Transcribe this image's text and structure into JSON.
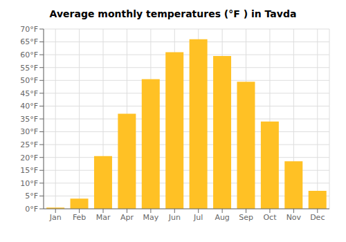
{
  "chart_data": {
    "type": "bar",
    "title": "Average monthly temperatures (°F ) in Tavda",
    "categories": [
      "Jan",
      "Feb",
      "Mar",
      "Apr",
      "May",
      "Jun",
      "Jul",
      "Aug",
      "Sep",
      "Oct",
      "Nov",
      "Dec"
    ],
    "values": [
      0.5,
      4,
      20.5,
      37,
      50.5,
      61,
      66,
      59.5,
      49.5,
      34,
      18.5,
      7
    ],
    "color": "#FFC125",
    "ylim": [
      0,
      70
    ],
    "yticks": [
      {
        "value": 0,
        "label": "0°F"
      },
      {
        "value": 5,
        "label": "5°F"
      },
      {
        "value": 10,
        "label": "10°F"
      },
      {
        "value": 15,
        "label": "15°F"
      },
      {
        "value": 20,
        "label": "20°F"
      },
      {
        "value": 25,
        "label": "25°F"
      },
      {
        "value": 30,
        "label": "30°F"
      },
      {
        "value": 35,
        "label": "35°F"
      },
      {
        "value": 40,
        "label": "40°F"
      },
      {
        "value": 45,
        "label": "45°F"
      },
      {
        "value": 50,
        "label": "50°F"
      },
      {
        "value": 55,
        "label": "55°F"
      },
      {
        "value": 60,
        "label": "60°F"
      },
      {
        "value": 65,
        "label": "65°F"
      },
      {
        "value": 70,
        "label": "70°F"
      }
    ],
    "grid": true
  }
}
